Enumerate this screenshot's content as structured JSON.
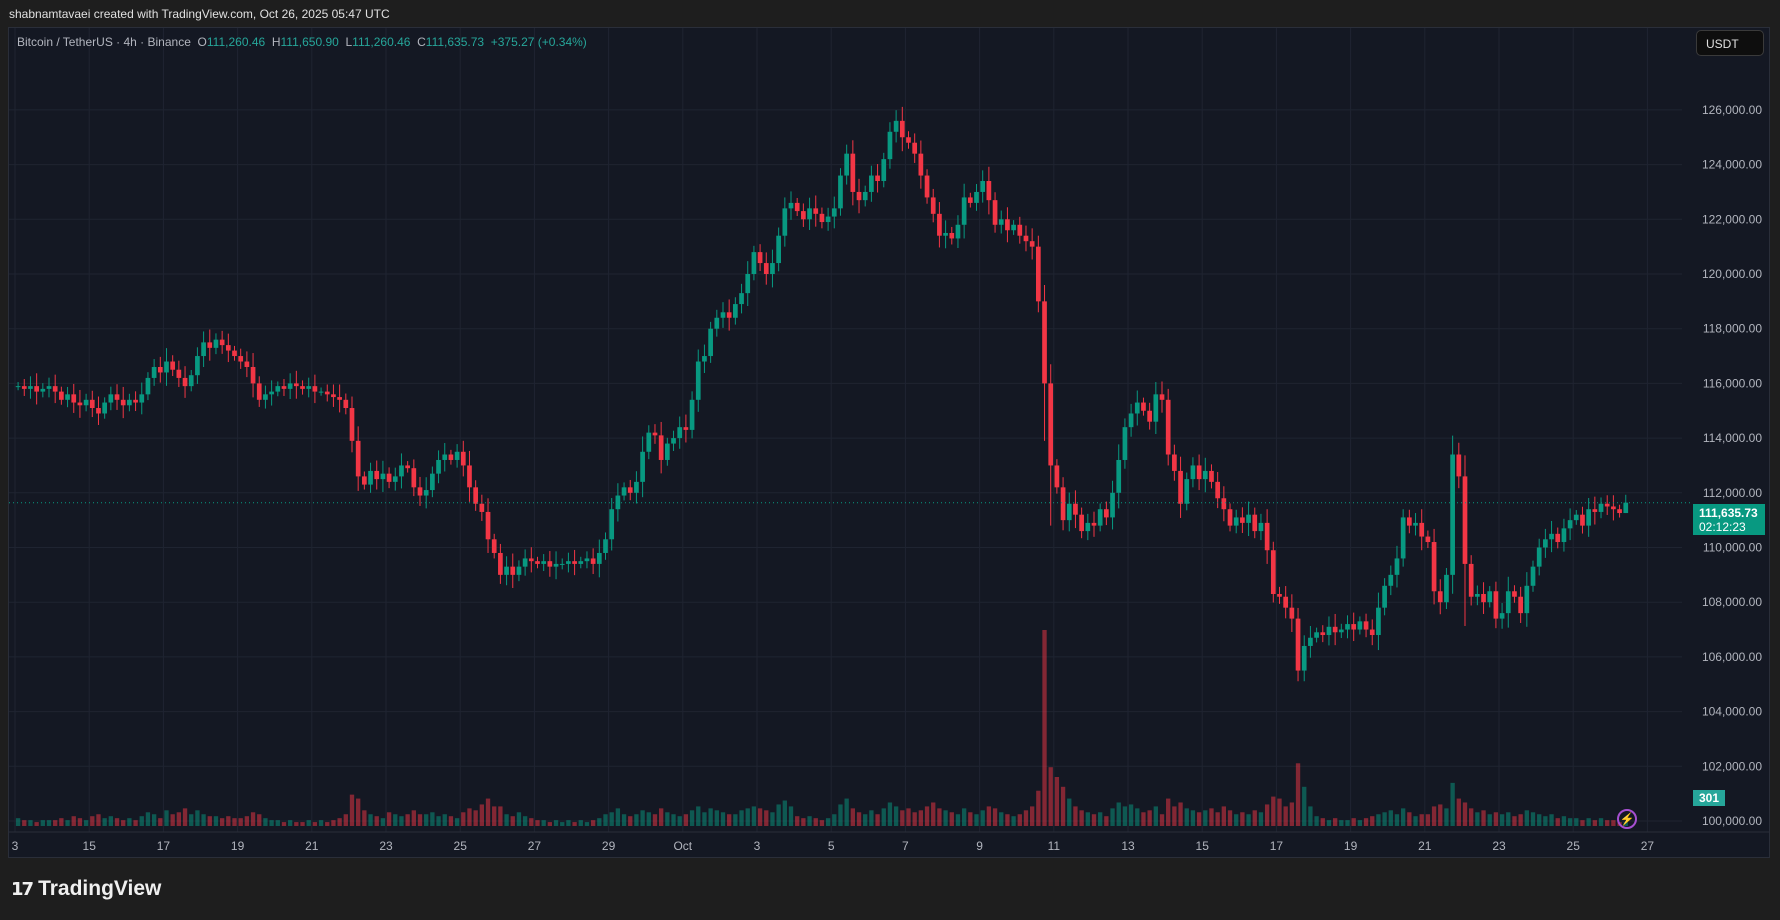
{
  "credit": "shabnamtavaei created with TradingView.com, Oct 26, 2025 05:47 UTC",
  "legend": {
    "symbol": "Bitcoin / TetherUS · 4h · Binance",
    "o_label": "O",
    "o": "111,260.46",
    "h_label": "H",
    "h": "111,650.90",
    "l_label": "L",
    "l": "111,260.46",
    "c_label": "C",
    "c": "111,635.73",
    "change": "+375.27 (+0.34%)"
  },
  "currency_button": "USDT",
  "current_price": "111,635.73",
  "countdown": "02:12:23",
  "volume_label": "301",
  "logo_text": "TradingView",
  "colors": {
    "up": "#089981",
    "down": "#f23645",
    "bg": "#141823"
  },
  "chart_data": {
    "type": "candlestick",
    "interval": "4h",
    "start": "Sep 13 2025",
    "price_unit": "thousand USDT",
    "ylim": [
      100,
      127
    ],
    "y_ticks": [
      "100,000.00",
      "102,000.00",
      "104,000.00",
      "106,000.00",
      "108,000.00",
      "110,000.00",
      "112,000.00",
      "114,000.00",
      "116,000.00",
      "118,000.00",
      "120,000.00",
      "122,000.00",
      "124,000.00",
      "126,000.00"
    ],
    "x_ticks": [
      "3",
      "15",
      "17",
      "19",
      "21",
      "23",
      "25",
      "27",
      "29",
      "Oct",
      "3",
      "5",
      "7",
      "9",
      "11",
      "13",
      "15",
      "17",
      "19",
      "21",
      "23",
      "25",
      "27"
    ],
    "first_open": 115.9,
    "closes": [
      115.9,
      115.8,
      115.9,
      115.7,
      115.8,
      115.9,
      115.7,
      115.4,
      115.6,
      115.3,
      115.2,
      115.4,
      115.1,
      114.9,
      115.3,
      115.6,
      115.4,
      115.2,
      115.4,
      115.3,
      115.6,
      116.2,
      116.6,
      116.4,
      116.8,
      116.5,
      116.2,
      115.9,
      116.3,
      117.0,
      117.5,
      117.3,
      117.6,
      117.4,
      117.2,
      117.0,
      116.8,
      116.6,
      116.0,
      115.4,
      115.6,
      115.7,
      115.9,
      115.8,
      116.0,
      115.9,
      115.8,
      115.9,
      115.7,
      115.7,
      115.6,
      115.5,
      115.4,
      115.1,
      113.9,
      112.6,
      112.3,
      112.8,
      112.5,
      112.7,
      112.4,
      112.6,
      113.0,
      112.9,
      112.2,
      111.9,
      112.1,
      112.7,
      113.2,
      113.4,
      113.2,
      113.5,
      113.0,
      112.2,
      111.6,
      111.3,
      110.3,
      109.8,
      109.0,
      109.3,
      109.0,
      109.3,
      109.6,
      109.5,
      109.4,
      109.5,
      109.3,
      109.4,
      109.4,
      109.5,
      109.4,
      109.5,
      109.6,
      109.4,
      109.8,
      110.3,
      111.4,
      111.9,
      112.2,
      112.0,
      112.4,
      113.5,
      114.2,
      114.1,
      113.2,
      113.8,
      114.0,
      114.4,
      114.3,
      115.4,
      116.8,
      117.0,
      118.0,
      118.4,
      118.6,
      118.4,
      118.9,
      119.3,
      120.0,
      120.8,
      120.4,
      120.0,
      120.4,
      121.4,
      122.4,
      122.6,
      122.3,
      122.0,
      122.4,
      122.2,
      121.9,
      122.1,
      122.4,
      123.6,
      124.4,
      123.0,
      122.7,
      123.0,
      123.6,
      123.4,
      124.2,
      125.2,
      125.6,
      125.0,
      124.8,
      124.4,
      123.6,
      122.8,
      122.2,
      121.4,
      121.5,
      121.3,
      121.8,
      122.8,
      122.6,
      123.0,
      123.4,
      122.7,
      121.8,
      122.0,
      121.6,
      121.8,
      121.4,
      121.2,
      121.0,
      119.0,
      116.0,
      113.0,
      112.2,
      111.0,
      111.6,
      111.2,
      110.6,
      110.9,
      110.8,
      111.4,
      111.1,
      112.0,
      113.2,
      114.4,
      114.9,
      115.3,
      115.0,
      114.6,
      115.6,
      115.4,
      113.4,
      112.8,
      111.6,
      112.5,
      113.0,
      112.5,
      112.8,
      112.4,
      111.8,
      111.4,
      110.8,
      111.1,
      110.9,
      111.2,
      110.6,
      110.9,
      109.9,
      108.3,
      108.2,
      107.8,
      107.4,
      105.5,
      106.4,
      106.7,
      106.9,
      106.8,
      107.1,
      106.9,
      107.0,
      107.2,
      107.0,
      107.3,
      107.0,
      106.8,
      107.8,
      108.6,
      109.0,
      109.6,
      111.1,
      110.8,
      110.9,
      110.4,
      110.2,
      108.4,
      108.0,
      109.0,
      113.4,
      112.6,
      109.4,
      108.2,
      108.3,
      108.0,
      108.4,
      107.4,
      107.6,
      108.4,
      108.2,
      107.6,
      108.6,
      109.3,
      110.0,
      110.3,
      110.5,
      110.2,
      110.7,
      111.0,
      111.2,
      110.8,
      111.4,
      111.3,
      111.6,
      111.5,
      111.4,
      111.26,
      111.64
    ],
    "volumes": [
      4,
      3,
      3,
      2,
      3,
      3,
      3,
      4,
      3,
      5,
      4,
      3,
      5,
      6,
      4,
      5,
      4,
      3,
      4,
      3,
      5,
      7,
      6,
      4,
      8,
      6,
      7,
      9,
      6,
      8,
      6,
      5,
      5,
      4,
      5,
      4,
      4,
      5,
      7,
      6,
      4,
      3,
      3,
      2,
      3,
      2,
      2,
      3,
      2,
      3,
      2,
      3,
      4,
      6,
      16,
      14,
      8,
      6,
      5,
      4,
      7,
      6,
      5,
      6,
      8,
      6,
      6,
      7,
      5,
      6,
      5,
      4,
      7,
      9,
      8,
      11,
      14,
      10,
      10,
      6,
      5,
      7,
      5,
      4,
      3,
      3,
      2,
      3,
      2,
      3,
      2,
      3,
      2,
      3,
      4,
      6,
      7,
      9,
      6,
      5,
      6,
      8,
      7,
      6,
      9,
      7,
      6,
      5,
      6,
      8,
      10,
      7,
      9,
      8,
      7,
      6,
      6,
      8,
      9,
      10,
      9,
      8,
      7,
      11,
      13,
      10,
      5,
      4,
      5,
      4,
      3,
      4,
      6,
      11,
      14,
      9,
      7,
      6,
      8,
      6,
      9,
      12,
      10,
      8,
      9,
      7,
      8,
      10,
      12,
      9,
      8,
      7,
      6,
      9,
      7,
      6,
      8,
      10,
      9,
      7,
      6,
      5,
      6,
      8,
      10,
      18,
      100,
      30,
      25,
      20,
      14,
      10,
      8,
      7,
      6,
      7,
      5,
      9,
      12,
      10,
      11,
      9,
      7,
      8,
      10,
      6,
      14,
      10,
      12,
      9,
      8,
      7,
      8,
      9,
      7,
      10,
      8,
      6,
      7,
      6,
      8,
      7,
      11,
      15,
      14,
      10,
      12,
      32,
      20,
      10,
      5,
      4,
      3,
      4,
      3,
      3,
      4,
      3,
      4,
      5,
      6,
      7,
      8,
      6,
      9,
      7,
      5,
      6,
      6,
      10,
      11,
      9,
      22,
      14,
      12,
      9,
      7,
      8,
      6,
      7,
      6,
      7,
      5,
      6,
      8,
      7,
      6,
      5,
      6,
      4,
      5,
      4,
      4,
      3,
      4,
      3,
      4,
      3,
      3,
      2,
      2
    ]
  }
}
